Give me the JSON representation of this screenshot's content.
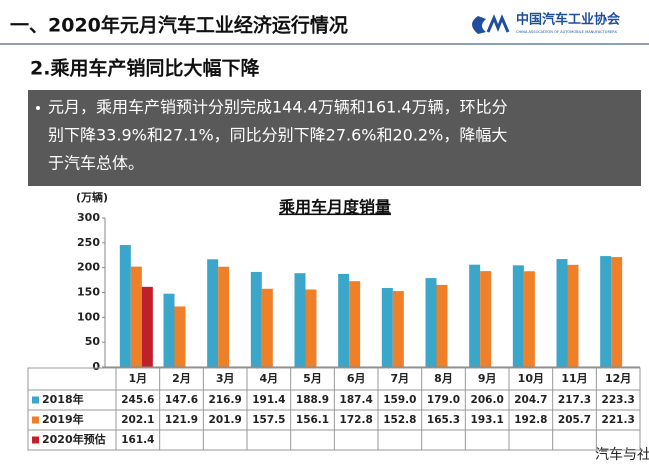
{
  "header": {
    "title": "一、2020年元月汽车工业经济运行情况",
    "logo_cn": "中国汽车工业协会",
    "logo_en": "CHINA ASSOCIATION OF AUTOMOBILE MANUFACTURERS"
  },
  "subtitle": "2.乘用车产销同比大幅下降",
  "bullet": [
    "元月，乘用车产销预计分别完成144.4万辆和161.4万辆，环比分",
    "别下降33.9%和27.1%，同比分别下降27.6%和20.2%，降幅大",
    "于汽车总体。"
  ],
  "chart_data": {
    "type": "bar",
    "title": "乘用车月度销量",
    "y_label": "(万辆)",
    "categories": [
      "1月",
      "2月",
      "3月",
      "4月",
      "5月",
      "6月",
      "7月",
      "8月",
      "9月",
      "10月",
      "11月",
      "12月"
    ],
    "series": [
      {
        "name": "2018年",
        "color": "#3aa6c9",
        "values": [
          245.6,
          147.6,
          216.9,
          191.4,
          188.9,
          187.4,
          159.0,
          179.0,
          206.0,
          204.7,
          217.3,
          223.3
        ],
        "value_labels": [
          "245.6",
          "147.6",
          "216.9",
          "191.4",
          "188.9",
          "187.4",
          "159.0",
          "179.0",
          "206.0",
          "204.7",
          "217.3",
          "223.3"
        ]
      },
      {
        "name": "2019年",
        "color": "#f07f2a",
        "values": [
          202.1,
          121.9,
          201.9,
          157.5,
          156.1,
          172.8,
          152.8,
          165.3,
          193.1,
          192.8,
          205.7,
          221.3
        ],
        "value_labels": [
          "202.1",
          "121.9",
          "201.9",
          "157.5",
          "156.1",
          "172.8",
          "152.8",
          "165.3",
          "193.1",
          "192.8",
          "205.7",
          "221.3"
        ]
      },
      {
        "name": "2020年预估",
        "color": "#c0202a",
        "values": [
          161.4,
          null,
          null,
          null,
          null,
          null,
          null,
          null,
          null,
          null,
          null,
          null
        ],
        "value_labels": [
          "161.4",
          null,
          null,
          null,
          null,
          null,
          null,
          null,
          null,
          null,
          null,
          null
        ]
      }
    ],
    "ylim": [
      0,
      300
    ],
    "yticks": [
      0,
      50,
      100,
      150,
      200,
      250,
      300
    ],
    "grid": false
  },
  "watermark": "汽车与社会"
}
